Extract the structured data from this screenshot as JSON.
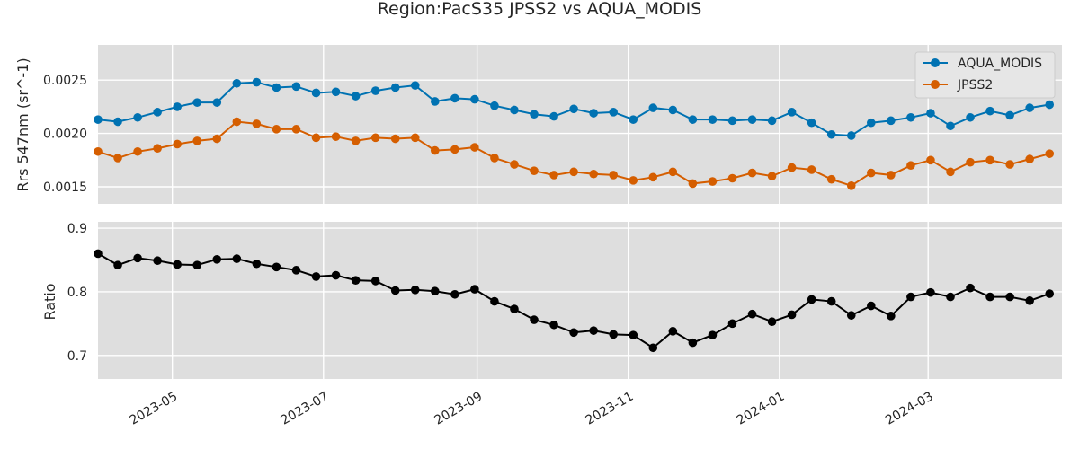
{
  "title": "Region:PacS35 JPSS2 vs AQUA_MODIS",
  "chart_data": [
    {
      "type": "line",
      "ylabel": "Rrs 547nm (sr^-1)",
      "xlabel": "",
      "xlim": [
        "2023-04-01",
        "2024-04-24"
      ],
      "ylim": [
        0.00134,
        0.00283
      ],
      "yticks": [
        "0.0015",
        "0.0020",
        "0.0025"
      ],
      "grid": true,
      "legend": "top-right",
      "x": [
        "2023-04-01",
        "2023-04-09",
        "2023-04-17",
        "2023-04-25",
        "2023-05-03",
        "2023-05-11",
        "2023-05-19",
        "2023-05-27",
        "2023-06-04",
        "2023-06-12",
        "2023-06-20",
        "2023-06-28",
        "2023-07-06",
        "2023-07-14",
        "2023-07-22",
        "2023-07-30",
        "2023-08-07",
        "2023-08-15",
        "2023-08-23",
        "2023-08-31",
        "2023-09-08",
        "2023-09-16",
        "2023-09-24",
        "2023-10-02",
        "2023-10-10",
        "2023-10-18",
        "2023-10-26",
        "2023-11-03",
        "2023-11-11",
        "2023-11-19",
        "2023-11-27",
        "2023-12-05",
        "2023-12-13",
        "2023-12-21",
        "2023-12-29",
        "2024-01-06",
        "2024-01-14",
        "2024-01-22",
        "2024-01-30",
        "2024-02-07",
        "2024-02-15",
        "2024-02-23",
        "2024-03-02",
        "2024-03-10",
        "2024-03-18",
        "2024-03-26",
        "2024-04-03",
        "2024-04-11",
        "2024-04-19"
      ],
      "series": [
        {
          "name": "AQUA_MODIS",
          "color": "#0072b2",
          "values": [
            0.00213,
            0.00211,
            0.00215,
            0.0022,
            0.00225,
            0.00229,
            0.00229,
            0.00247,
            0.00248,
            0.00243,
            0.00244,
            0.00238,
            0.00239,
            0.00235,
            0.0024,
            0.00243,
            0.00245,
            0.0023,
            0.00233,
            0.00232,
            0.00226,
            0.00222,
            0.00218,
            0.00216,
            0.00223,
            0.00219,
            0.0022,
            0.00213,
            0.00224,
            0.00222,
            0.00213,
            0.00213,
            0.00212,
            0.00213,
            0.00212,
            0.0022,
            0.0021,
            0.00199,
            0.00198,
            0.0021,
            0.00212,
            0.00215,
            0.00219,
            0.00207,
            0.00215,
            0.00221,
            0.00217,
            0.00224,
            0.00227
          ]
        },
        {
          "name": "JPSS2",
          "color": "#d55e00",
          "values": [
            0.00183,
            0.00177,
            0.00183,
            0.00186,
            0.0019,
            0.00193,
            0.00195,
            0.00211,
            0.00209,
            0.00204,
            0.00204,
            0.00196,
            0.00197,
            0.00193,
            0.00196,
            0.00195,
            0.00196,
            0.00184,
            0.00185,
            0.00187,
            0.00177,
            0.00171,
            0.00165,
            0.00161,
            0.00164,
            0.00162,
            0.00161,
            0.00156,
            0.00159,
            0.00164,
            0.00153,
            0.00155,
            0.00158,
            0.00163,
            0.0016,
            0.00168,
            0.00166,
            0.00157,
            0.00151,
            0.00163,
            0.00161,
            0.0017,
            0.00175,
            0.00164,
            0.00173,
            0.00175,
            0.00171,
            0.00176,
            0.00181
          ]
        }
      ]
    },
    {
      "type": "line",
      "ylabel": "Ratio",
      "xlabel": "",
      "xlim": [
        "2023-04-01",
        "2024-04-24"
      ],
      "ylim": [
        0.663,
        0.91
      ],
      "yticks": [
        "0.7",
        "0.8",
        "0.9"
      ],
      "xticks": [
        "2023-05",
        "2023-07",
        "2023-09",
        "2023-11",
        "2024-01",
        "2024-03"
      ],
      "grid": true,
      "x": [
        "2023-04-01",
        "2023-04-09",
        "2023-04-17",
        "2023-04-25",
        "2023-05-03",
        "2023-05-11",
        "2023-05-19",
        "2023-05-27",
        "2023-06-04",
        "2023-06-12",
        "2023-06-20",
        "2023-06-28",
        "2023-07-06",
        "2023-07-14",
        "2023-07-22",
        "2023-07-30",
        "2023-08-07",
        "2023-08-15",
        "2023-08-23",
        "2023-08-31",
        "2023-09-08",
        "2023-09-16",
        "2023-09-24",
        "2023-10-02",
        "2023-10-10",
        "2023-10-18",
        "2023-10-26",
        "2023-11-03",
        "2023-11-11",
        "2023-11-19",
        "2023-11-27",
        "2023-12-05",
        "2023-12-13",
        "2023-12-21",
        "2023-12-29",
        "2024-01-06",
        "2024-01-14",
        "2024-01-22",
        "2024-01-30",
        "2024-02-07",
        "2024-02-15",
        "2024-02-23",
        "2024-03-02",
        "2024-03-10",
        "2024-03-18",
        "2024-03-26",
        "2024-04-03",
        "2024-04-11",
        "2024-04-19"
      ],
      "series": [
        {
          "color": "#000000",
          "values": [
            0.86,
            0.842,
            0.853,
            0.849,
            0.843,
            0.842,
            0.851,
            0.852,
            0.844,
            0.839,
            0.834,
            0.824,
            0.826,
            0.818,
            0.817,
            0.802,
            0.803,
            0.801,
            0.796,
            0.804,
            0.785,
            0.773,
            0.756,
            0.748,
            0.736,
            0.739,
            0.733,
            0.732,
            0.712,
            0.738,
            0.72,
            0.732,
            0.75,
            0.765,
            0.753,
            0.764,
            0.788,
            0.785,
            0.763,
            0.778,
            0.762,
            0.792,
            0.799,
            0.792,
            0.806,
            0.792,
            0.792,
            0.786,
            0.797
          ]
        }
      ]
    }
  ]
}
